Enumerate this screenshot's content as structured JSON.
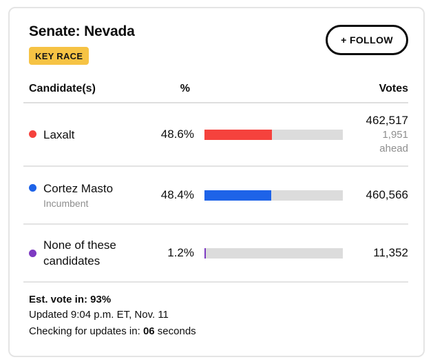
{
  "header": {
    "title": "Senate: Nevada",
    "key_race_label": "KEY RACE",
    "follow_label": "+ FOLLOW"
  },
  "colors": {
    "key_race_bg": "#f6c344",
    "laxalt_red": "#f5423d",
    "cortez_masto_blue": "#1e63e8",
    "none_purple": "#7d3ac2",
    "bar_track_gray": "#dcdcdc"
  },
  "table": {
    "columns": {
      "candidates": "Candidate(s)",
      "percent": "%",
      "votes": "Votes"
    },
    "rows": [
      {
        "name": "Laxalt",
        "sub_label": "",
        "percent": "48.6%",
        "percent_value": 48.6,
        "color": "#f5423d",
        "votes": "462,517",
        "margin": "1,951",
        "margin_label": "ahead"
      },
      {
        "name": "Cortez Masto",
        "sub_label": "Incumbent",
        "percent": "48.4%",
        "percent_value": 48.4,
        "color": "#1e63e8",
        "votes": "460,566",
        "margin": "",
        "margin_label": ""
      },
      {
        "name": "None of these candidates",
        "sub_label": "",
        "percent": "1.2%",
        "percent_value": 1.2,
        "color": "#7d3ac2",
        "votes": "11,352",
        "margin": "",
        "margin_label": ""
      }
    ]
  },
  "footer": {
    "est_vote": "Est. vote in: 93%",
    "updated": "Updated 9:04 p.m. ET, Nov. 11",
    "checking_prefix": "Checking for updates in: ",
    "checking_value": "06",
    "checking_suffix": " seconds"
  }
}
